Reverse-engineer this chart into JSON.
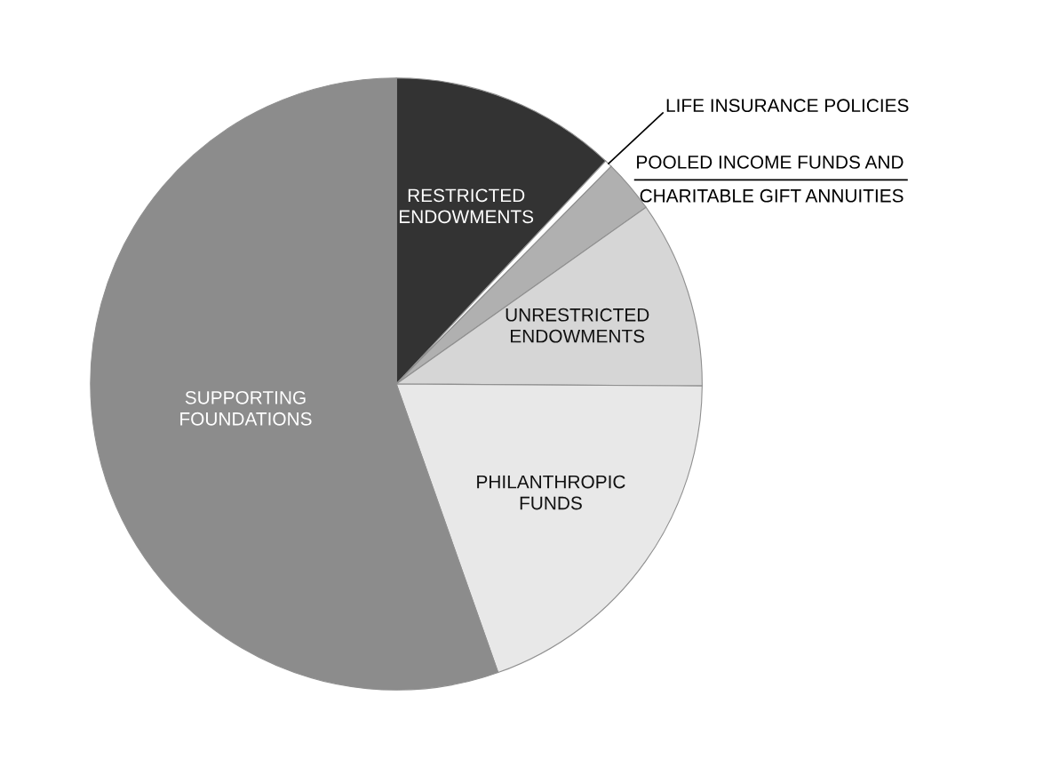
{
  "chart_data": {
    "type": "pie",
    "categories": [
      "RESTRICTED\nENDOWMENTS",
      "LIFE INSURANCE POLICIES",
      "POOLED INCOME FUNDS AND\nCHARITABLE GIFT ANNUITIES",
      "UNRESTRICTED\nENDOWMENTS",
      "PHILANTHROPIC\nFUNDS",
      "SUPPORTING\nFOUNDATIONS"
    ],
    "values": [
      12.0,
      0.4,
      2.8,
      9.9,
      19.5,
      55.4
    ],
    "colors": [
      "#333333",
      "#ffffff",
      "#b0b0b0",
      "#d6d6d6",
      "#e8e8e8",
      "#8c8c8c"
    ],
    "legend": false
  }
}
